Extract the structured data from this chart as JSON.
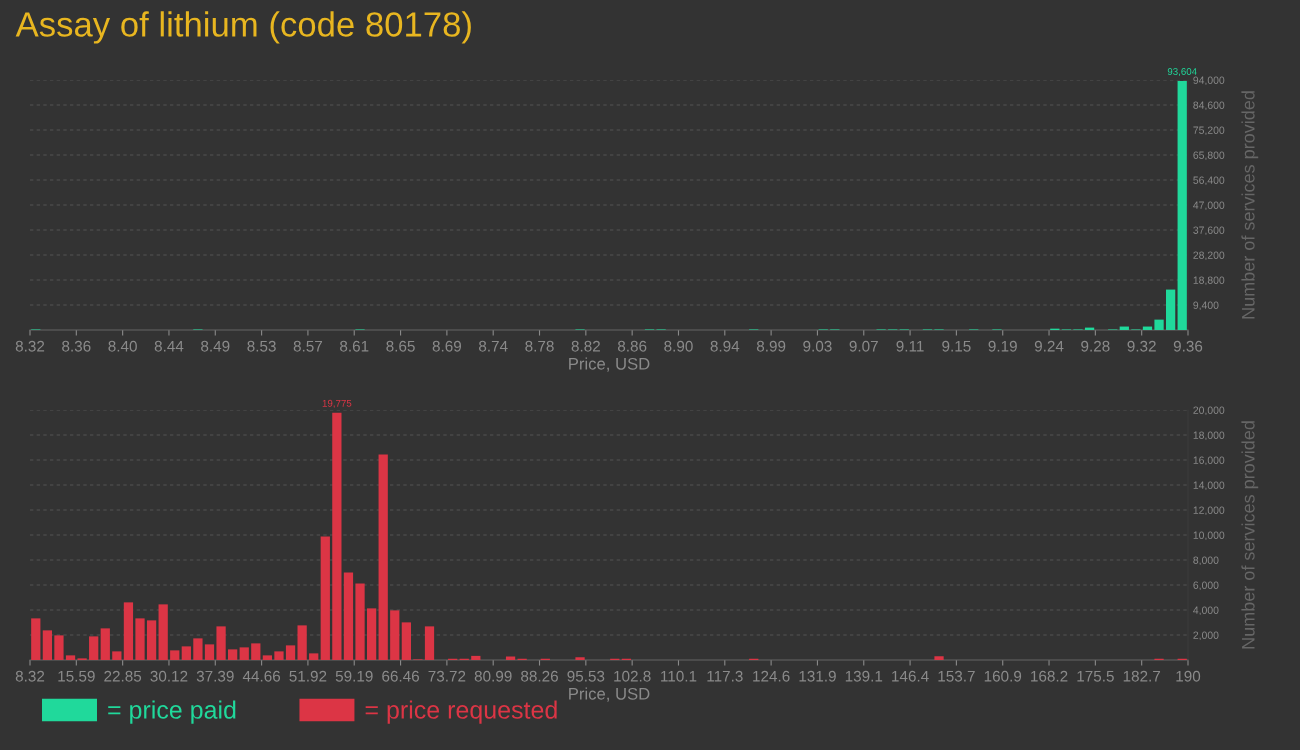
{
  "chart_data": [
    {
      "type": "histogram",
      "title": "Assay of lithium (code 80178)",
      "xlabel": "Price, USD",
      "ylabel": "Number of services provided",
      "bins": [
        8.32,
        8.3304,
        8.3408,
        8.3512,
        8.3616,
        8.372,
        8.3824,
        8.3928,
        8.4032,
        8.4136,
        8.424,
        8.4344,
        8.4448,
        8.4552,
        8.4656,
        8.476,
        8.4864,
        8.4968,
        8.5072,
        8.5176,
        8.528,
        8.5384,
        8.5488,
        8.5592,
        8.5696,
        8.58,
        8.5904,
        8.6008,
        8.6112,
        8.6216,
        8.632,
        8.6424,
        8.6528,
        8.6632,
        8.6736,
        8.684,
        8.6944,
        8.7048,
        8.7152,
        8.7256,
        8.736,
        8.7464,
        8.7568,
        8.7672,
        8.7776,
        8.788,
        8.7984,
        8.8088,
        8.8192,
        8.8296,
        8.84,
        8.8504,
        8.8608,
        8.8712,
        8.8816,
        8.892,
        8.9024,
        8.9128,
        8.9232,
        8.9336,
        8.944,
        8.9544,
        8.9648,
        8.9752,
        8.9856,
        8.996,
        9.0064,
        9.0168,
        9.0272,
        9.0376,
        9.048,
        9.0584,
        9.0688,
        9.0792,
        9.0896,
        9.1,
        9.1104,
        9.1208,
        9.1312,
        9.1416,
        9.152,
        9.1624,
        9.1728,
        9.1832,
        9.1936,
        9.204,
        9.2144,
        9.2248,
        9.2352,
        9.2456,
        9.256,
        9.2664,
        9.2768,
        9.2872,
        9.2976,
        9.308,
        9.3184,
        9.3288,
        9.3392,
        9.3496,
        9.36
      ],
      "series": [
        {
          "name": "= price paid",
          "color": "#20d99b",
          "values": [
            200,
            0,
            0,
            0,
            0,
            0,
            0,
            0,
            0,
            0,
            0,
            0,
            0,
            0,
            200,
            0,
            0,
            0,
            0,
            0,
            0,
            0,
            0,
            0,
            0,
            0,
            0,
            0,
            200,
            0,
            0,
            0,
            0,
            0,
            0,
            0,
            0,
            0,
            0,
            0,
            0,
            0,
            0,
            0,
            0,
            0,
            0,
            200,
            0,
            0,
            0,
            0,
            0,
            200,
            200,
            0,
            0,
            0,
            0,
            0,
            0,
            0,
            200,
            0,
            0,
            0,
            0,
            0,
            200,
            200,
            0,
            0,
            0,
            200,
            200,
            200,
            0,
            200,
            200,
            0,
            0,
            200,
            0,
            200,
            0,
            0,
            0,
            0,
            500,
            200,
            200,
            900,
            0,
            200,
            1300,
            200,
            1300,
            3900,
            15200,
            93604
          ],
          "value_labels": [
            null,
            null,
            null,
            null,
            null,
            null,
            null,
            null,
            null,
            null,
            null,
            null,
            null,
            null,
            null,
            null,
            null,
            null,
            null,
            null,
            null,
            null,
            null,
            null,
            null,
            null,
            null,
            null,
            null,
            null,
            null,
            null,
            null,
            null,
            null,
            null,
            null,
            null,
            null,
            null,
            null,
            null,
            null,
            null,
            null,
            null,
            null,
            null,
            null,
            null,
            null,
            null,
            null,
            null,
            null,
            null,
            null,
            null,
            null,
            null,
            null,
            null,
            null,
            null,
            null,
            null,
            null,
            null,
            null,
            null,
            null,
            null,
            null,
            null,
            null,
            null,
            null,
            null,
            null,
            null,
            null,
            null,
            null,
            null,
            null,
            null,
            null,
            null,
            null,
            null,
            null,
            null,
            null,
            null,
            null,
            null,
            null,
            null,
            null,
            "93,604"
          ]
        }
      ],
      "xlim": [
        8.32,
        9.36
      ],
      "xticks": [
        {
          "value": 8.32,
          "label": "8.32"
        },
        {
          "value": 8.3616,
          "label": "8.36"
        },
        {
          "value": 8.4032,
          "label": "8.40"
        },
        {
          "value": 8.4448,
          "label": "8.44"
        },
        {
          "value": 8.4864,
          "label": "8.49"
        },
        {
          "value": 8.528,
          "label": "8.53"
        },
        {
          "value": 8.5696,
          "label": "8.57"
        },
        {
          "value": 8.6112,
          "label": "8.61"
        },
        {
          "value": 8.6528,
          "label": "8.65"
        },
        {
          "value": 8.6944,
          "label": "8.69"
        },
        {
          "value": 8.736,
          "label": "8.74"
        },
        {
          "value": 8.7776,
          "label": "8.78"
        },
        {
          "value": 8.8192,
          "label": "8.82"
        },
        {
          "value": 8.8608,
          "label": "8.86"
        },
        {
          "value": 8.9024,
          "label": "8.90"
        },
        {
          "value": 8.944,
          "label": "8.94"
        },
        {
          "value": 8.9856,
          "label": "8.99"
        },
        {
          "value": 9.0272,
          "label": "9.03"
        },
        {
          "value": 9.0688,
          "label": "9.07"
        },
        {
          "value": 9.1104,
          "label": "9.11"
        },
        {
          "value": 9.152,
          "label": "9.15"
        },
        {
          "value": 9.1936,
          "label": "9.19"
        },
        {
          "value": 9.2352,
          "label": "9.24"
        },
        {
          "value": 9.2768,
          "label": "9.28"
        },
        {
          "value": 9.3184,
          "label": "9.32"
        },
        {
          "value": 9.36,
          "label": "9.36"
        }
      ],
      "ylim": [
        0,
        94000
      ],
      "yticks": [
        {
          "value": 9400,
          "label": "9,400"
        },
        {
          "value": 18800,
          "label": "18,800"
        },
        {
          "value": 28200,
          "label": "28,200"
        },
        {
          "value": 37600,
          "label": "37,600"
        },
        {
          "value": 47000,
          "label": "47,000"
        },
        {
          "value": 56400,
          "label": "56,400"
        },
        {
          "value": 65800,
          "label": "65,800"
        },
        {
          "value": 75200,
          "label": "75,200"
        },
        {
          "value": 84600,
          "label": "84,600"
        },
        {
          "value": 94000,
          "label": "94,000"
        }
      ],
      "grid": "y",
      "legend": "bottom left"
    },
    {
      "type": "histogram",
      "xlabel": "Price, USD",
      "ylabel": "Number of services provided",
      "bins": [
        8.32,
        10.1368,
        11.9536,
        13.7704,
        15.5872,
        17.404,
        19.2208,
        21.0376,
        22.8544,
        24.6712,
        26.488,
        28.3048,
        30.1216,
        31.9384,
        33.7552,
        35.572,
        37.3888,
        39.2056,
        41.0224,
        42.8392,
        44.656,
        46.4728,
        48.2896,
        50.1064,
        51.9232,
        53.74,
        55.5568,
        57.3736,
        59.1904,
        61.0072,
        62.824,
        64.6408,
        66.4576,
        68.2744,
        70.0912,
        71.908,
        73.7248,
        75.5416,
        77.3584,
        79.1752,
        80.992,
        82.8088,
        84.6256,
        86.4424,
        88.2592,
        90.076,
        91.8928,
        93.7096,
        95.5264,
        97.3432,
        99.16,
        100.9768,
        102.7936,
        104.6104,
        106.4272,
        108.244,
        110.0608,
        111.8776,
        113.6944,
        115.5112,
        117.328,
        119.1448,
        120.9616,
        122.7784,
        124.5952,
        126.412,
        128.2288,
        130.0456,
        131.8624,
        133.6792,
        135.496,
        137.3128,
        139.1296,
        140.9464,
        142.7632,
        144.58,
        146.3968,
        148.2136,
        150.0304,
        151.8472,
        153.664,
        155.4808,
        157.2976,
        159.1144,
        160.9312,
        162.748,
        164.5648,
        166.3816,
        168.1984,
        170.0152,
        171.832,
        173.6488,
        175.4656,
        177.2824,
        179.0992,
        180.916,
        182.7328,
        184.5496,
        186.3664,
        188.1832,
        190
      ],
      "series": [
        {
          "name": "= price requested",
          "color": "#dc3545",
          "values": [
            3330,
            2370,
            1970,
            370,
            130,
            1890,
            2530,
            690,
            4610,
            3330,
            3170,
            4450,
            770,
            1090,
            1730,
            1250,
            2690,
            850,
            1010,
            1330,
            370,
            690,
            1170,
            2770,
            530,
            9880,
            19775,
            7000,
            6120,
            4130,
            16430,
            3970,
            3010,
            50,
            2690,
            0,
            100,
            100,
            330,
            0,
            0,
            280,
            100,
            0,
            100,
            0,
            0,
            220,
            0,
            0,
            100,
            100,
            0,
            0,
            0,
            0,
            0,
            0,
            0,
            0,
            0,
            0,
            100,
            0,
            0,
            0,
            0,
            0,
            0,
            0,
            0,
            0,
            0,
            0,
            0,
            0,
            0,
            0,
            300,
            0,
            0,
            0,
            0,
            0,
            0,
            0,
            0,
            0,
            0,
            0,
            0,
            0,
            0,
            0,
            0,
            0,
            0,
            100,
            0,
            100
          ],
          "value_labels": [
            null,
            null,
            null,
            null,
            null,
            null,
            null,
            null,
            null,
            null,
            null,
            null,
            null,
            null,
            null,
            null,
            null,
            null,
            null,
            null,
            null,
            null,
            null,
            null,
            null,
            null,
            "19,775",
            null,
            null,
            null,
            null,
            null,
            null,
            null,
            null,
            null,
            null,
            null,
            null,
            null,
            null,
            null,
            null,
            null,
            null,
            null,
            null,
            null,
            null,
            null,
            null,
            null,
            null,
            null,
            null,
            null,
            null,
            null,
            null,
            null,
            null,
            null,
            null,
            null,
            null,
            null,
            null,
            null,
            null,
            null,
            null,
            null,
            null,
            null,
            null,
            null,
            null,
            null,
            null,
            null,
            null,
            null,
            null,
            null,
            null,
            null,
            null,
            null,
            null,
            null,
            null,
            null,
            null,
            null,
            null,
            null,
            null,
            null,
            null,
            null
          ]
        }
      ],
      "xlim": [
        8.32,
        190
      ],
      "xticks": [
        {
          "value": 8.32,
          "label": "8.32"
        },
        {
          "value": 15.5872,
          "label": "15.59"
        },
        {
          "value": 22.8544,
          "label": "22.85"
        },
        {
          "value": 30.1216,
          "label": "30.12"
        },
        {
          "value": 37.3888,
          "label": "37.39"
        },
        {
          "value": 44.656,
          "label": "44.66"
        },
        {
          "value": 51.9232,
          "label": "51.92"
        },
        {
          "value": 59.1904,
          "label": "59.19"
        },
        {
          "value": 66.4576,
          "label": "66.46"
        },
        {
          "value": 73.7248,
          "label": "73.72"
        },
        {
          "value": 80.992,
          "label": "80.99"
        },
        {
          "value": 88.2592,
          "label": "88.26"
        },
        {
          "value": 95.5264,
          "label": "95.53"
        },
        {
          "value": 102.7936,
          "label": "102.8"
        },
        {
          "value": 110.0608,
          "label": "110.1"
        },
        {
          "value": 117.328,
          "label": "117.3"
        },
        {
          "value": 124.5952,
          "label": "124.6"
        },
        {
          "value": 131.8624,
          "label": "131.9"
        },
        {
          "value": 139.1296,
          "label": "139.1"
        },
        {
          "value": 146.3968,
          "label": "146.4"
        },
        {
          "value": 153.664,
          "label": "153.7"
        },
        {
          "value": 160.9312,
          "label": "160.9"
        },
        {
          "value": 168.1984,
          "label": "168.2"
        },
        {
          "value": 175.4656,
          "label": "175.5"
        },
        {
          "value": 182.7328,
          "label": "182.7"
        },
        {
          "value": 190,
          "label": "190"
        }
      ],
      "ylim": [
        0,
        20000
      ],
      "yticks": [
        {
          "value": 2000,
          "label": "2,000"
        },
        {
          "value": 4000,
          "label": "4,000"
        },
        {
          "value": 6000,
          "label": "6,000"
        },
        {
          "value": 8000,
          "label": "8,000"
        },
        {
          "value": 10000,
          "label": "10,000"
        },
        {
          "value": 12000,
          "label": "12,000"
        },
        {
          "value": 14000,
          "label": "14,000"
        },
        {
          "value": 16000,
          "label": "16,000"
        },
        {
          "value": 18000,
          "label": "18,000"
        },
        {
          "value": 20000,
          "label": "20,000"
        }
      ],
      "grid": "y",
      "legend": "bottom left"
    }
  ]
}
